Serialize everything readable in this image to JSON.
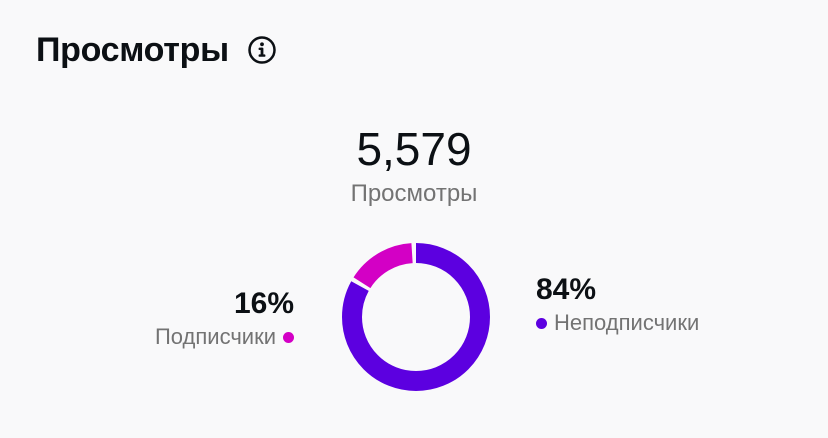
{
  "header": {
    "title": "Просмотры",
    "info_icon": "info-icon"
  },
  "summary": {
    "total": "5,579",
    "total_label": "Просмотры"
  },
  "segments": [
    {
      "percent_label": "16%",
      "label": "Подписчики",
      "value": 16,
      "color": "#d300c5"
    },
    {
      "percent_label": "84%",
      "label": "Неподписчики",
      "value": 84,
      "color": "#5c00e0"
    }
  ]
}
